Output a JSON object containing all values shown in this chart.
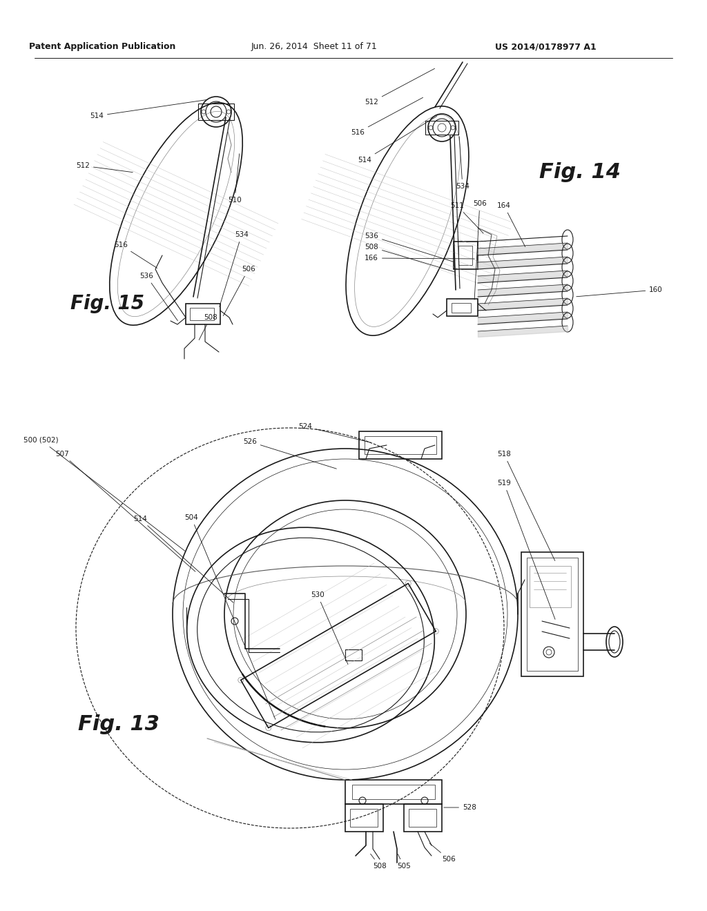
{
  "header_left": "Patent Application Publication",
  "header_center": "Jun. 26, 2014  Sheet 11 of 71",
  "header_right": "US 2014/0178977 A1",
  "background_color": "#ffffff",
  "line_color": "#1a1a1a",
  "fig13_label": "Fig. 13",
  "fig14_label": "Fig. 14",
  "fig15_label": "Fig. 15",
  "fig_width": 10.24,
  "fig_height": 13.2,
  "dpi": 100
}
